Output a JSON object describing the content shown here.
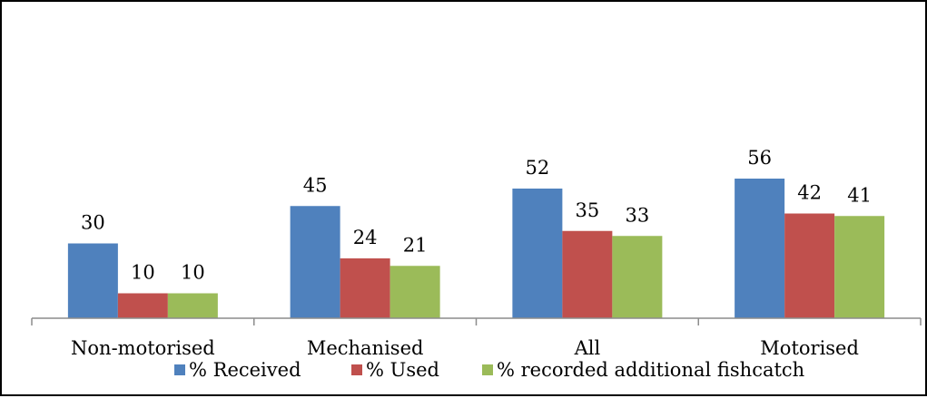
{
  "chart_data": {
    "type": "bar",
    "categories": [
      "Non-motorised",
      "Mechanised",
      "All",
      "Motorised"
    ],
    "series": [
      {
        "name": "% Received",
        "values": [
          30,
          45,
          52,
          56
        ],
        "color": "#4f81bd"
      },
      {
        "name": "% Used",
        "values": [
          10,
          24,
          35,
          42
        ],
        "color": "#c0504d"
      },
      {
        "name": "% recorded additional fishcatch",
        "values": [
          10,
          21,
          33,
          41
        ],
        "color": "#9bbb59"
      }
    ],
    "ylim": [
      0,
      70
    ],
    "grid": false,
    "legend_position": "bottom",
    "data_labels": true
  }
}
